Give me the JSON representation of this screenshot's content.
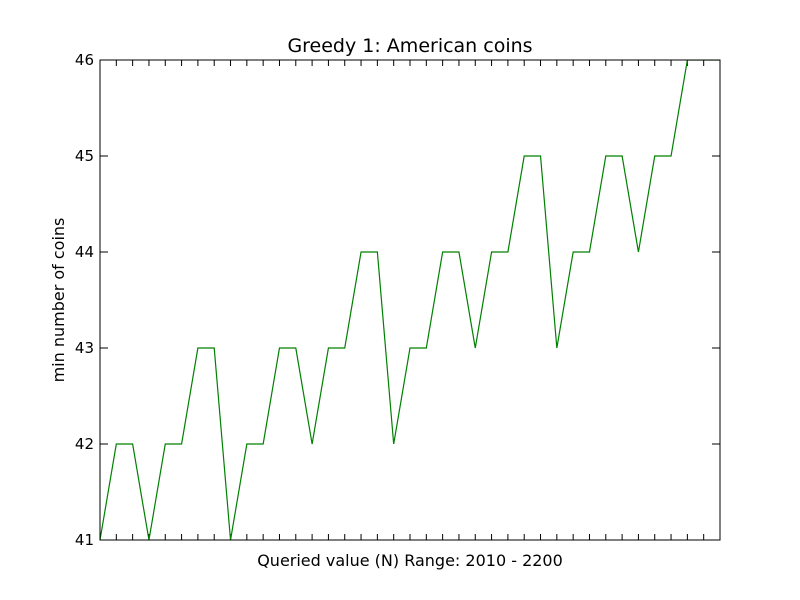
{
  "chart_data": {
    "type": "line",
    "title": "Greedy 1: American coins",
    "xlabel": "Queried value (N) Range: 2010 - 2200",
    "ylabel": "min number of coins",
    "xlim": [
      2010,
      2200
    ],
    "ylim": [
      41,
      46
    ],
    "yticks": [
      41,
      42,
      43,
      44,
      45,
      46
    ],
    "show_x_tick_labels": false,
    "grid": false,
    "legend": "none",
    "colors": {
      "series": "#008000",
      "frame": "#000000"
    },
    "series": [
      {
        "x": [
          2010,
          2015,
          2020,
          2025,
          2030,
          2035,
          2040,
          2045,
          2050,
          2055,
          2060,
          2065,
          2070,
          2075,
          2080,
          2085,
          2090,
          2095,
          2100,
          2105,
          2110,
          2115,
          2120,
          2125,
          2130,
          2135,
          2140,
          2145,
          2150,
          2155,
          2160,
          2165,
          2170,
          2175,
          2180,
          2185,
          2190,
          2195,
          2200
        ],
        "values": [
          41,
          42,
          42,
          41,
          42,
          42,
          43,
          43,
          41,
          42,
          42,
          43,
          43,
          42,
          43,
          43,
          44,
          44,
          42,
          43,
          43,
          44,
          44,
          43,
          44,
          44,
          45,
          45,
          43,
          44,
          44,
          45,
          45,
          44,
          45,
          45,
          46,
          46,
          46
        ]
      }
    ]
  }
}
